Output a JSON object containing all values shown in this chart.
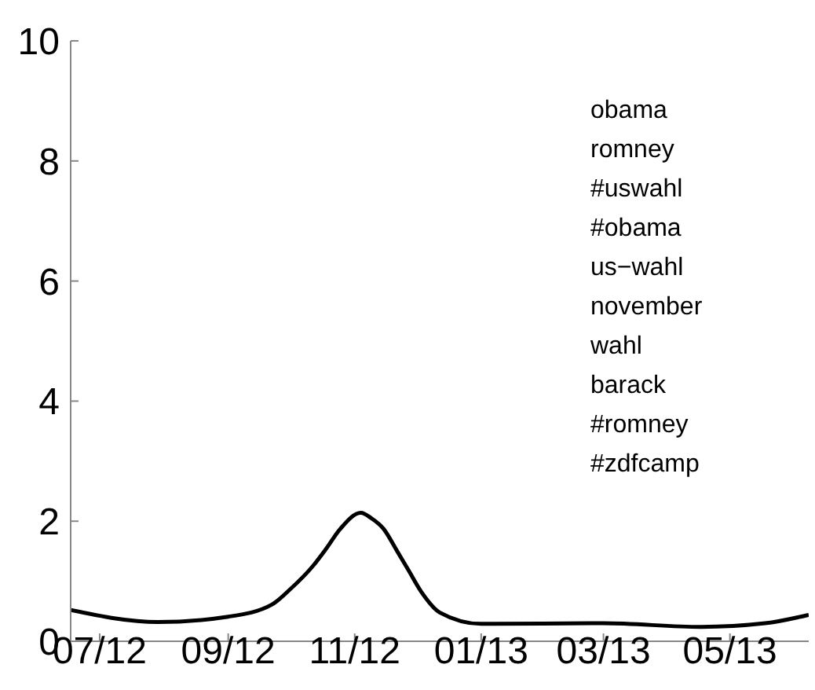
{
  "chart_data": {
    "type": "line",
    "x": [
      "2012-06-17",
      "2012-07-29",
      "2012-09-01",
      "2012-09-22",
      "2012-10-01",
      "2012-10-12",
      "2012-10-18",
      "2012-10-25",
      "2012-11-04",
      "2012-11-09",
      "2012-11-15",
      "2012-11-21",
      "2012-11-27",
      "2012-12-03",
      "2012-12-12",
      "2013-01-01",
      "2013-03-01",
      "2013-04-17",
      "2013-05-18",
      "2013-06-08"
    ],
    "series": [
      {
        "color": "#000000",
        "values": [
          0.52,
          0.32,
          0.41,
          0.61,
          0.87,
          1.26,
          1.53,
          1.87,
          2.14,
          2.05,
          1.87,
          1.53,
          1.18,
          0.83,
          0.48,
          0.29,
          0.3,
          0.24,
          0.3,
          0.44
        ]
      }
    ],
    "xlim": [
      "2012-06-17",
      "2013-06-08"
    ],
    "xticks": [
      {
        "value": "2012-07-01",
        "label": "07/12"
      },
      {
        "value": "2012-09-01",
        "label": "09/12"
      },
      {
        "value": "2012-11-01",
        "label": "11/12"
      },
      {
        "value": "2013-01-01",
        "label": "01/13"
      },
      {
        "value": "2013-03-01",
        "label": "03/13"
      },
      {
        "value": "2013-05-01",
        "label": "05/13"
      }
    ],
    "ylim": [
      0,
      10
    ],
    "yticks": [
      0,
      2,
      4,
      6,
      8,
      10
    ],
    "annotations": [
      "obama",
      "romney",
      "#uswahl",
      "#obama",
      "us−wahl",
      "november",
      "wahl",
      "barack",
      "#romney",
      "#zdfcamp"
    ],
    "grid": false,
    "legend": false,
    "marker": "none",
    "line_style": "solid"
  }
}
